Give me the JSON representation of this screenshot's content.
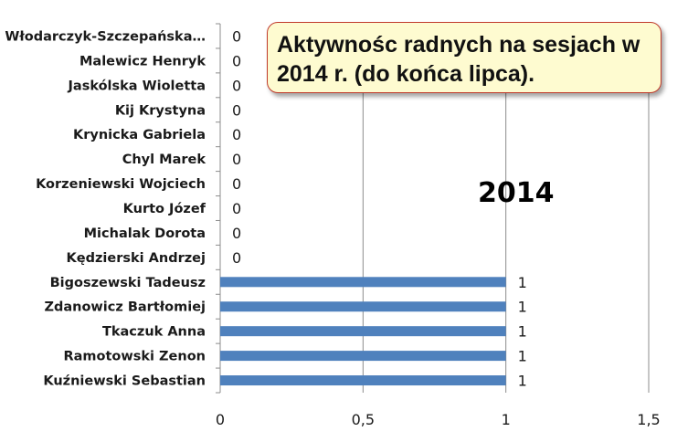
{
  "chart_data": {
    "type": "bar",
    "orientation": "horizontal",
    "title": "Aktywnośc radnych na sesjach w 2014 r. (do końca lipca).",
    "annotation": "2014",
    "categories": [
      "Włodarczyk-Szczepańska…",
      "Malewicz Henryk",
      "Jaskólska Wioletta",
      "Kij Krystyna",
      "Krynicka Gabriela",
      "Chyl Marek",
      "Korzeniewski Wojciech",
      "Kurto Józef",
      "Michalak Dorota",
      "Kędzierski Andrzej",
      "Bigoszewski Tadeusz",
      "Zdanowicz Bartłomiej",
      "Tkaczuk Anna",
      "Ramotowski Zenon",
      "Kuźniewski Sebastian"
    ],
    "values": [
      0,
      0,
      0,
      0,
      0,
      0,
      0,
      0,
      0,
      0,
      1,
      1,
      1,
      1,
      1
    ],
    "value_labels": [
      "0",
      "0",
      "0",
      "0",
      "0",
      "0",
      "0",
      "0",
      "0",
      "0",
      "1",
      "1",
      "1",
      "1",
      "1"
    ],
    "xlim": [
      0,
      1.5
    ],
    "xticks": [
      0,
      0.5,
      1,
      1.5
    ],
    "xtick_labels": [
      "0",
      "0,5",
      "1",
      "1,5"
    ],
    "xlabel": "",
    "ylabel": "",
    "grid": "vertical",
    "legend": "none",
    "bar_color": "#4f81bd"
  }
}
